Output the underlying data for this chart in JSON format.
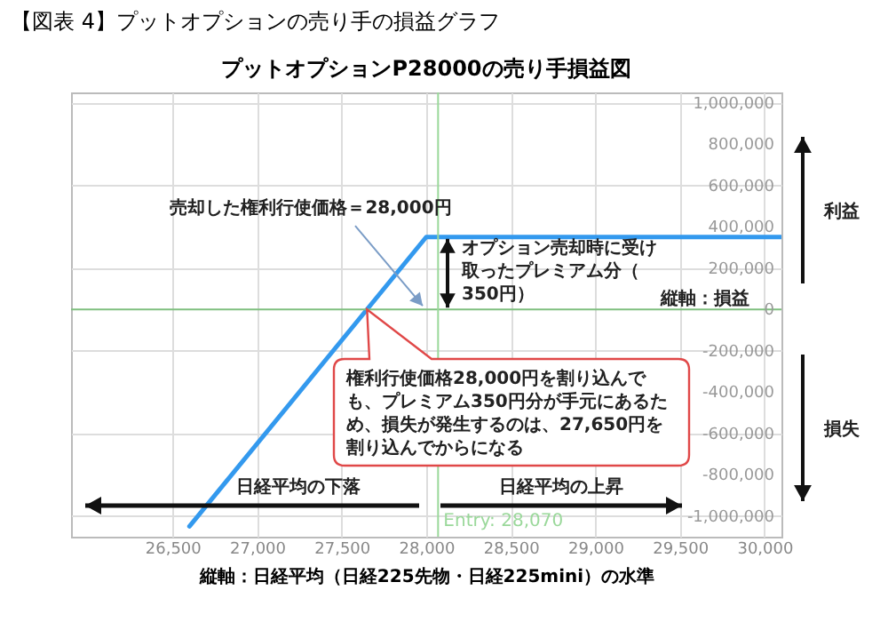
{
  "chart_data": {
    "type": "line",
    "title": "【図表 4】プットオプションの売り手の損益グラフ",
    "subtitle": "プットオプションP28000の売り手損益図",
    "xlabel": "縦軸：日経平均（日経225先物・日経225mini）の水準",
    "x": [
      26600,
      28000,
      30100
    ],
    "series": [
      {
        "color": "#3399ee",
        "values": [
          -1050000,
          350000,
          350000
        ]
      }
    ],
    "xlim": [
      25900,
      30100
    ],
    "xticks": [
      {
        "value": 26500,
        "label": "26,500"
      },
      {
        "value": 27000,
        "label": "27,000"
      },
      {
        "value": 27500,
        "label": "27,500"
      },
      {
        "value": 28000,
        "label": "28,000"
      },
      {
        "value": 28500,
        "label": "28,500"
      },
      {
        "value": 29000,
        "label": "29,000"
      },
      {
        "value": 29500,
        "label": "29,500"
      },
      {
        "value": 30000,
        "label": "30,000"
      }
    ],
    "ylim": [
      -1100000,
      1050000
    ],
    "yticks": [
      {
        "value": -1000000,
        "label": "-1,000,000"
      },
      {
        "value": -800000,
        "label": "-800,000"
      },
      {
        "value": -600000,
        "label": "-600,000"
      },
      {
        "value": -400000,
        "label": "-400,000"
      },
      {
        "value": -200000,
        "label": "-200,000"
      },
      0,
      {
        "value": 200000,
        "label": "200,000"
      },
      {
        "value": 400000,
        "label": "400,000"
      },
      {
        "value": 600000,
        "label": "600,000"
      },
      {
        "value": 800000,
        "label": "800,000"
      },
      {
        "value": 1000000,
        "label": "1,000,000"
      }
    ],
    "grid": true,
    "ref_lines": [
      {
        "axis": "y",
        "value": 0,
        "color": "#7fbf7f"
      },
      {
        "axis": "x",
        "value": 28070,
        "label": "Entry: 28,070",
        "color": "#9ad89a"
      }
    ],
    "annotations": [
      {
        "text": "売却した権利行使価格＝28,000円",
        "x": 28000,
        "y": 0
      },
      "オプション売却時に受け取ったプレミアム分（350円）",
      "縦軸：損益",
      "権利行使価格28,000円を割り込んでも、プレミアム350円分が手元にあるため、損失が発生するのは、27,650円を割り込んでからになる",
      "日経平均の下落",
      "日経平均の上昇",
      "利益",
      "損失"
    ]
  }
}
